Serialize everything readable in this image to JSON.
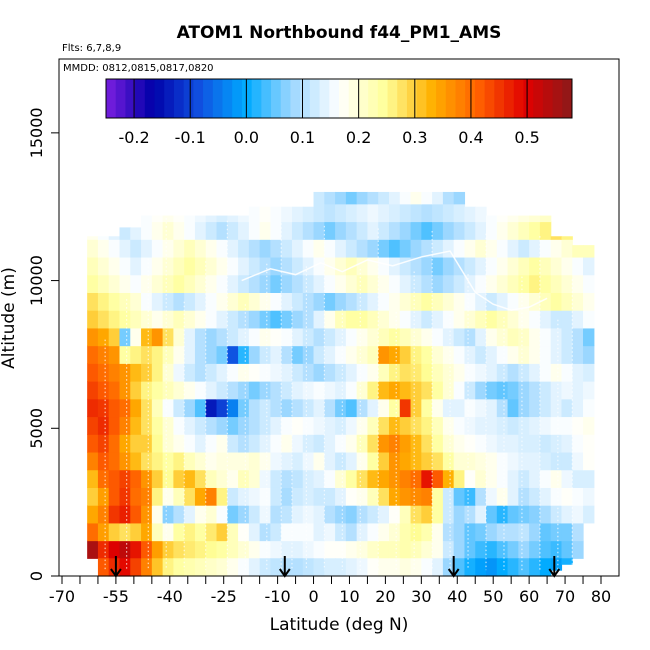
{
  "chart_data": {
    "type": "heatmap",
    "title": "ATOM1 Northbound f44_PM1_AMS",
    "subtitle_flights": "Flts: 6,7,8,9",
    "subtitle_dates": "MMDD: 0812,0815,0817,0820",
    "xlabel": "Latitude (deg N)",
    "ylabel": "Altitude (m)",
    "xlim": [
      -70,
      80
    ],
    "ylim": [
      0,
      17500
    ],
    "x_tick_labels": [
      "-70",
      "-55",
      "-40",
      "-25",
      "-10",
      "0",
      "10",
      "20",
      "30",
      "40",
      "50",
      "60",
      "70",
      "80"
    ],
    "x_tick_values": [
      -70,
      -55,
      -40,
      -25,
      -10,
      0,
      10,
      20,
      30,
      40,
      50,
      60,
      70,
      80
    ],
    "y_tick_labels": [
      "0",
      "5000",
      "10000",
      "15000"
    ],
    "y_tick_values": [
      0,
      5000,
      10000,
      15000
    ],
    "colorbar": {
      "min": -0.25,
      "max": 0.58,
      "tick_labels": [
        "-0.2",
        "-0.1",
        "0.0",
        "0.1",
        "0.2",
        "0.3",
        "0.4",
        "0.5"
      ],
      "tick_values": [
        -0.2,
        -0.1,
        0.0,
        0.1,
        0.2,
        0.3,
        0.4,
        0.5
      ],
      "stops": [
        "#7b1fe0",
        "#0000a8",
        "#1050e0",
        "#00aaff",
        "#9fd8ff",
        "#ffffff",
        "#ffff99",
        "#ffb000",
        "#ff6000",
        "#e00000",
        "#8b1a1a"
      ]
    },
    "profile_latitudes": [
      -55,
      -8,
      39,
      67
    ],
    "column_edges_lat": [
      -63,
      -60,
      -57,
      -54,
      -51,
      -48,
      -45,
      -42,
      -39,
      -36,
      -33,
      -30,
      -27,
      -24,
      -21,
      -18,
      -15,
      -12,
      -9,
      -6,
      -3,
      0,
      3,
      6,
      9,
      12,
      15,
      18,
      21,
      24,
      27,
      30,
      33,
      36,
      39,
      42,
      45,
      48,
      51,
      54,
      57,
      60,
      63,
      66,
      69,
      72,
      75,
      78
    ],
    "row_edges_alt": [
      600,
      1200,
      1800,
      2400,
      3000,
      3600,
      4200,
      4800,
      5400,
      6000,
      6600,
      7200,
      7800,
      8400,
      9000,
      9600,
      10200,
      10800,
      11400,
      12000,
      12600,
      13000
    ],
    "column_top_alt": [
      11500,
      11500,
      11500,
      11800,
      11800,
      12200,
      12200,
      12200,
      12200,
      12200,
      12200,
      12200,
      12200,
      12200,
      12200,
      12500,
      12500,
      12500,
      12500,
      12500,
      12500,
      13000,
      13000,
      13000,
      13000,
      13000,
      13000,
      13000,
      13000,
      13000,
      13000,
      13000,
      13000,
      13000,
      13000,
      12500,
      12500,
      12200,
      12200,
      12200,
      12200,
      12200,
      12200,
      11500,
      11500,
      11200,
      11200
    ],
    "column_bottom_alt": [
      600,
      0,
      0,
      0,
      0,
      0,
      0,
      0,
      0,
      0,
      0,
      0,
      0,
      0,
      0,
      0,
      0,
      0,
      0,
      0,
      0,
      0,
      0,
      0,
      0,
      0,
      0,
      0,
      0,
      0,
      0,
      0,
      0,
      0,
      0,
      0,
      0,
      0,
      0,
      0,
      0,
      0,
      0,
      200,
      400,
      600,
      1800
    ],
    "grid_values": [
      [
        0.55,
        0.46,
        0.5,
        0.53,
        0.48,
        0.42,
        0.35,
        0.3,
        0.28,
        0.27,
        0.26,
        0.25,
        0.24,
        0.22,
        0.2,
        0.18,
        0.16,
        0.15,
        0.14,
        0.14,
        0.15,
        0.16,
        0.17,
        0.17,
        0.18,
        0.19,
        0.21,
        0.22,
        0.22,
        0.23,
        0.22,
        0.2,
        0.18,
        0.12,
        0.08,
        0.05,
        0.03,
        0.02,
        0.04,
        0.06,
        0.08,
        0.06,
        0.04,
        0.03,
        0.05,
        0.08,
        0.1
      ],
      [
        0.4,
        0.35,
        0.3,
        0.28,
        0.3,
        0.34,
        0.22,
        0.18,
        0.24,
        0.26,
        0.24,
        0.27,
        0.3,
        0.22,
        0.17,
        0.14,
        0.1,
        0.12,
        0.16,
        0.16,
        0.16,
        0.14,
        0.15,
        0.12,
        0.1,
        0.14,
        0.16,
        0.18,
        0.2,
        0.23,
        0.25,
        0.23,
        0.18,
        0.1,
        0.08,
        0.05,
        0.06,
        0.08,
        0.1,
        0.1,
        0.11,
        0.08,
        0.05,
        0.06,
        0.06,
        0.1,
        0.12
      ],
      [
        0.34,
        0.38,
        0.45,
        0.47,
        0.42,
        0.36,
        0.18,
        0.07,
        0.1,
        0.14,
        0.18,
        0.2,
        0.16,
        0.06,
        0.08,
        0.12,
        0.15,
        0.1,
        0.11,
        0.14,
        0.15,
        0.14,
        0.1,
        0.08,
        0.07,
        0.1,
        0.12,
        0.14,
        0.17,
        0.22,
        0.28,
        0.3,
        0.24,
        0.12,
        0.08,
        0.1,
        0.14,
        0.05,
        0.02,
        0.05,
        0.06,
        0.07,
        0.09,
        0.12,
        0.14,
        0.15,
        0.13
      ],
      [
        0.3,
        0.35,
        0.42,
        0.45,
        0.4,
        0.38,
        0.26,
        0.18,
        0.22,
        0.28,
        0.34,
        0.38,
        0.26,
        0.12,
        0.14,
        0.15,
        0.16,
        0.12,
        0.09,
        0.12,
        0.13,
        0.12,
        0.12,
        0.14,
        0.17,
        0.18,
        0.22,
        0.28,
        0.34,
        0.36,
        0.37,
        0.38,
        0.24,
        0.12,
        0.05,
        0.03,
        0.1,
        0.15,
        0.18,
        0.14,
        0.1,
        0.12,
        0.14,
        0.16,
        0.17,
        0.16,
        0.15
      ],
      [
        0.32,
        0.4,
        0.42,
        0.44,
        0.41,
        0.36,
        0.3,
        0.25,
        0.3,
        0.32,
        0.28,
        0.22,
        0.2,
        0.18,
        0.22,
        0.2,
        0.15,
        0.12,
        0.1,
        0.11,
        0.13,
        0.14,
        0.16,
        0.2,
        0.24,
        0.28,
        0.32,
        0.34,
        0.36,
        0.38,
        0.4,
        0.48,
        0.42,
        0.33,
        0.26,
        0.17,
        0.2,
        0.18,
        0.16,
        0.14,
        0.12,
        0.14,
        0.16,
        0.18,
        0.15,
        0.13,
        0.13
      ],
      [
        0.38,
        0.42,
        0.4,
        0.36,
        0.32,
        0.28,
        0.26,
        0.24,
        0.26,
        0.22,
        0.2,
        0.18,
        0.19,
        0.19,
        0.19,
        0.2,
        0.18,
        0.15,
        0.14,
        0.13,
        0.15,
        0.18,
        0.14,
        0.12,
        0.14,
        0.18,
        0.24,
        0.3,
        0.36,
        0.34,
        0.32,
        0.3,
        0.28,
        0.24,
        0.2,
        0.2,
        0.19,
        0.18,
        0.16,
        0.15,
        0.14,
        0.14,
        0.13,
        0.12,
        0.12,
        0.15,
        0.17
      ],
      [
        0.42,
        0.44,
        0.4,
        0.34,
        0.3,
        0.3,
        0.25,
        0.2,
        0.18,
        0.16,
        0.14,
        0.16,
        0.18,
        0.12,
        0.1,
        0.12,
        0.14,
        0.16,
        0.18,
        0.15,
        0.13,
        0.12,
        0.14,
        0.16,
        0.18,
        0.22,
        0.28,
        0.36,
        0.38,
        0.35,
        0.32,
        0.28,
        0.24,
        0.2,
        0.18,
        0.17,
        0.16,
        0.15,
        0.14,
        0.14,
        0.13,
        0.13,
        0.12,
        0.13,
        0.14,
        0.16,
        0.17
      ],
      [
        0.44,
        0.46,
        0.42,
        0.38,
        0.32,
        0.28,
        0.24,
        0.2,
        0.16,
        0.14,
        0.12,
        0.1,
        0.08,
        0.06,
        0.08,
        0.1,
        0.12,
        0.14,
        0.16,
        0.17,
        0.16,
        0.15,
        0.14,
        0.13,
        0.15,
        0.18,
        0.22,
        0.28,
        0.32,
        0.3,
        0.28,
        0.26,
        0.22,
        0.18,
        0.16,
        0.15,
        0.14,
        0.14,
        0.13,
        0.12,
        0.13,
        0.14,
        0.15,
        0.16,
        0.16,
        0.17,
        0.18
      ],
      [
        0.46,
        0.45,
        0.42,
        0.4,
        0.34,
        0.28,
        0.22,
        0.16,
        0.12,
        0.08,
        0.04,
        -0.14,
        -0.1,
        -0.04,
        0.06,
        0.1,
        0.12,
        0.1,
        0.08,
        0.1,
        0.12,
        0.14,
        0.1,
        0.06,
        0.04,
        0.1,
        0.14,
        0.18,
        0.24,
        0.45,
        0.3,
        0.24,
        0.18,
        0.14,
        0.14,
        0.16,
        0.15,
        0.14,
        0.1,
        0.05,
        0.08,
        0.1,
        0.12,
        0.14,
        0.12,
        0.14,
        0.16
      ],
      [
        0.44,
        0.42,
        0.4,
        0.36,
        0.3,
        0.26,
        0.24,
        0.22,
        0.2,
        0.18,
        0.16,
        0.14,
        0.12,
        0.1,
        0.08,
        0.06,
        0.08,
        0.1,
        0.12,
        0.14,
        0.15,
        0.16,
        0.15,
        0.14,
        0.16,
        0.2,
        0.26,
        0.32,
        0.34,
        0.32,
        0.3,
        0.28,
        0.24,
        0.2,
        0.16,
        0.12,
        0.08,
        0.06,
        0.05,
        0.06,
        0.08,
        0.1,
        0.12,
        0.14,
        0.15,
        0.14,
        0.15
      ],
      [
        0.42,
        0.4,
        0.38,
        0.36,
        0.32,
        0.3,
        0.26,
        0.2,
        0.15,
        0.12,
        0.1,
        0.12,
        0.14,
        0.16,
        0.18,
        0.17,
        0.16,
        0.15,
        0.14,
        0.12,
        0.1,
        0.08,
        0.1,
        0.12,
        0.14,
        0.16,
        0.18,
        0.22,
        0.26,
        0.28,
        0.27,
        0.25,
        0.22,
        0.2,
        0.18,
        0.16,
        0.15,
        0.14,
        0.12,
        0.1,
        0.12,
        0.14,
        0.16,
        0.18,
        0.16,
        0.14,
        0.13
      ],
      [
        0.4,
        0.38,
        0.36,
        0.24,
        0.26,
        0.28,
        0.26,
        0.22,
        0.18,
        0.14,
        0.1,
        0.08,
        0.06,
        -0.08,
        0.02,
        0.08,
        0.12,
        0.14,
        0.1,
        0.06,
        0.08,
        0.12,
        0.14,
        0.16,
        0.18,
        0.2,
        0.22,
        0.36,
        0.34,
        0.3,
        0.26,
        0.24,
        0.2,
        0.18,
        0.16,
        0.14,
        0.12,
        0.14,
        0.16,
        0.18,
        0.2,
        0.18,
        0.16,
        0.14,
        0.12,
        0.1,
        0.08
      ],
      [
        0.36,
        0.34,
        0.3,
        0.06,
        0.18,
        0.32,
        0.36,
        0.28,
        0.2,
        0.14,
        0.1,
        0.08,
        0.1,
        0.12,
        0.14,
        0.16,
        0.18,
        0.17,
        0.16,
        0.14,
        0.12,
        0.1,
        0.12,
        0.14,
        0.16,
        0.18,
        0.2,
        0.22,
        0.24,
        0.22,
        0.2,
        0.18,
        0.16,
        0.14,
        0.12,
        0.1,
        0.14,
        0.18,
        0.2,
        0.22,
        0.21,
        0.18,
        0.16,
        0.14,
        0.12,
        0.1,
        0.06
      ],
      [
        0.3,
        0.28,
        0.26,
        0.24,
        0.22,
        0.2,
        0.18,
        0.2,
        0.22,
        0.2,
        0.18,
        0.16,
        0.14,
        0.12,
        0.1,
        0.08,
        0.06,
        0.04,
        0.06,
        0.08,
        0.1,
        0.14,
        0.18,
        0.22,
        0.24,
        0.24,
        0.22,
        0.2,
        0.18,
        0.16,
        0.14,
        0.12,
        0.14,
        0.16,
        0.18,
        0.2,
        0.22,
        0.24,
        0.22,
        0.2,
        0.18,
        0.16,
        0.14,
        0.12,
        0.12,
        0.14,
        0.16
      ],
      [
        0.28,
        0.26,
        0.24,
        0.22,
        0.2,
        0.16,
        0.14,
        0.12,
        0.1,
        0.12,
        0.14,
        0.16,
        0.18,
        0.2,
        0.22,
        0.2,
        0.18,
        0.16,
        0.14,
        0.12,
        0.1,
        0.08,
        0.06,
        0.08,
        0.1,
        0.12,
        0.14,
        0.16,
        0.18,
        0.2,
        0.22,
        0.24,
        0.22,
        0.2,
        0.18,
        0.16,
        0.14,
        0.12,
        0.14,
        0.16,
        0.18,
        0.2,
        0.22,
        0.24,
        0.22,
        0.2,
        0.18
      ],
      [
        0.24,
        0.22,
        0.2,
        0.18,
        0.16,
        0.18,
        0.2,
        0.22,
        0.24,
        0.22,
        0.2,
        0.18,
        0.16,
        0.14,
        0.12,
        0.1,
        0.08,
        0.06,
        0.08,
        0.1,
        0.12,
        0.14,
        0.16,
        0.18,
        0.2,
        0.22,
        0.2,
        0.18,
        0.16,
        0.14,
        0.12,
        0.1,
        0.08,
        0.1,
        0.12,
        0.14,
        0.16,
        0.18,
        0.2,
        0.22,
        0.24,
        0.26,
        0.24,
        0.22,
        0.2,
        0.18,
        0.16
      ],
      [
        0.22,
        0.2,
        0.18,
        0.16,
        0.14,
        0.16,
        0.18,
        0.2,
        0.22,
        0.24,
        0.22,
        0.2,
        0.18,
        0.16,
        0.14,
        0.12,
        0.1,
        0.08,
        0.1,
        0.12,
        0.14,
        0.16,
        0.18,
        0.2,
        0.22,
        0.2,
        0.18,
        0.16,
        0.14,
        0.12,
        0.1,
        0.08,
        0.06,
        0.08,
        0.1,
        0.12,
        0.14,
        0.16,
        0.18,
        0.2,
        0.22,
        0.24,
        0.22,
        0.2,
        0.18,
        0.16,
        0.14
      ],
      [
        0.2,
        0.18,
        0.16,
        0.14,
        0.12,
        0.14,
        0.16,
        0.18,
        0.2,
        0.22,
        0.2,
        0.18,
        0.16,
        0.14,
        0.12,
        0.1,
        0.08,
        0.1,
        0.12,
        0.14,
        0.16,
        0.18,
        0.16,
        0.14,
        0.12,
        0.1,
        0.08,
        0.06,
        0.04,
        0.06,
        0.08,
        0.1,
        0.12,
        0.14,
        0.16,
        0.18,
        0.2,
        0.18,
        0.16,
        0.14,
        0.12,
        0.14,
        0.16,
        0.18,
        0.2,
        0.22,
        0.22
      ],
      [
        0.18,
        0.16,
        0.14,
        0.12,
        0.14,
        0.16,
        0.18,
        0.2,
        0.18,
        0.16,
        0.14,
        0.12,
        0.1,
        0.12,
        0.14,
        0.16,
        0.18,
        0.16,
        0.14,
        0.12,
        0.1,
        0.08,
        0.06,
        0.08,
        0.1,
        0.12,
        0.14,
        0.12,
        0.1,
        0.08,
        0.06,
        0.04,
        0.06,
        0.08,
        0.1,
        0.12,
        0.14,
        0.16,
        0.18,
        0.2,
        0.22,
        0.24,
        0.26,
        0.28,
        0.26,
        0.24,
        0.24
      ],
      [
        0.17,
        0.16,
        0.15,
        0.14,
        0.15,
        0.16,
        0.17,
        0.18,
        0.17,
        0.16,
        0.15,
        0.14,
        0.13,
        0.14,
        0.15,
        0.16,
        0.17,
        0.16,
        0.15,
        0.14,
        0.13,
        0.12,
        0.11,
        0.12,
        0.13,
        0.14,
        0.15,
        0.14,
        0.13,
        0.12,
        0.11,
        0.1,
        0.11,
        0.12,
        0.13,
        0.14,
        0.15,
        0.16,
        0.17,
        0.18,
        0.19,
        0.2,
        0.21,
        0.22,
        0.21,
        0.2,
        0.2
      ],
      [
        0.16,
        0.16,
        0.15,
        0.15,
        0.14,
        0.14,
        0.15,
        0.15,
        0.16,
        0.16,
        0.15,
        0.15,
        0.14,
        0.14,
        0.15,
        0.15,
        0.12,
        0.1,
        0.1,
        0.12,
        0.14,
        0.12,
        0.1,
        0.08,
        0.06,
        0.08,
        0.1,
        0.12,
        0.14,
        0.16,
        0.18,
        0.16,
        0.14,
        0.1,
        0.08,
        0.1,
        0.12,
        0.14,
        0.16,
        0.18,
        0.18,
        0.18,
        0.18,
        0.18,
        0.18,
        0.18,
        0.18
      ]
    ]
  }
}
